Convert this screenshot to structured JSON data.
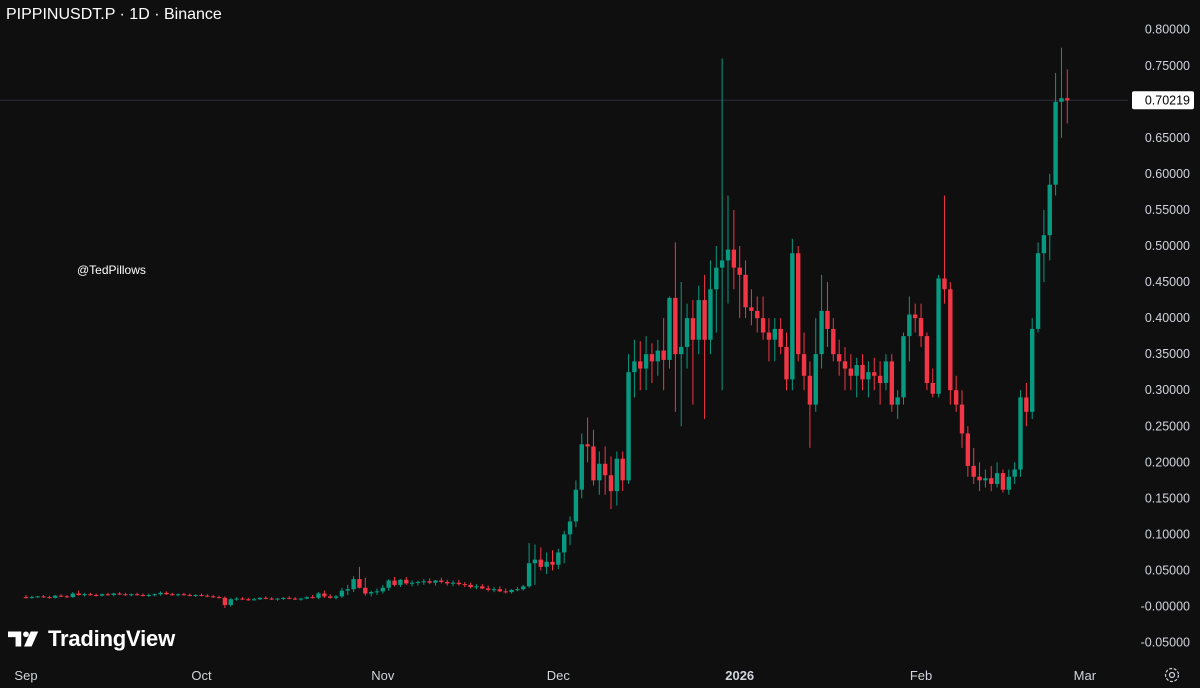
{
  "header": {
    "title": "PIPPINUSDT.P · 1D · Binance"
  },
  "watermark": {
    "handle": "@TedPillows",
    "brand": "TradingView"
  },
  "colors": {
    "background": "#0f0f0f",
    "up": "#089981",
    "down": "#f23645",
    "text": "#d1d4dc",
    "price_label_bg": "#ffffff",
    "price_label_text": "#000000",
    "price_line": "#2a2e39"
  },
  "icons": {
    "logo": "tradingview-logo-icon",
    "settings": "settings-gear-icon"
  },
  "chart_data": {
    "type": "candlestick",
    "symbol": "PIPPINUSDT.P",
    "interval": "1D",
    "exchange": "Binance",
    "ylim": [
      -0.07,
      0.81
    ],
    "y_ticks": [
      0.8,
      0.75,
      0.65,
      0.6,
      0.55,
      0.5,
      0.45,
      0.4,
      0.35,
      0.3,
      0.25,
      0.2,
      0.15,
      0.1,
      0.05,
      -0.0,
      -0.05
    ],
    "y_tick_labels": [
      "0.80000",
      "0.75000",
      "0.65000",
      "0.60000",
      "0.55000",
      "0.50000",
      "0.45000",
      "0.40000",
      "0.35000",
      "0.30000",
      "0.25000",
      "0.20000",
      "0.15000",
      "0.10000",
      "0.05000",
      "-0.00000",
      "-0.05000"
    ],
    "last_price": 0.70219,
    "last_price_label": "0.70219",
    "x_labels": [
      {
        "label": "Sep",
        "day": 0
      },
      {
        "label": "Oct",
        "day": 30
      },
      {
        "label": "Nov",
        "day": 61
      },
      {
        "label": "Dec",
        "day": 91
      },
      {
        "label": "2026",
        "day": 122
      },
      {
        "label": "Feb",
        "day": 153
      },
      {
        "label": "Mar",
        "day": 181
      }
    ],
    "ohlc": [
      [
        0.013,
        0.016,
        0.011,
        0.012
      ],
      [
        0.012,
        0.015,
        0.011,
        0.013
      ],
      [
        0.013,
        0.015,
        0.012,
        0.014
      ],
      [
        0.014,
        0.016,
        0.012,
        0.013
      ],
      [
        0.013,
        0.015,
        0.011,
        0.012
      ],
      [
        0.012,
        0.016,
        0.011,
        0.015
      ],
      [
        0.015,
        0.017,
        0.013,
        0.014
      ],
      [
        0.014,
        0.016,
        0.012,
        0.013
      ],
      [
        0.013,
        0.02,
        0.012,
        0.018
      ],
      [
        0.018,
        0.022,
        0.015,
        0.016
      ],
      [
        0.016,
        0.019,
        0.014,
        0.017
      ],
      [
        0.017,
        0.019,
        0.015,
        0.016
      ],
      [
        0.016,
        0.018,
        0.014,
        0.015
      ],
      [
        0.015,
        0.018,
        0.014,
        0.017
      ],
      [
        0.017,
        0.019,
        0.015,
        0.016
      ],
      [
        0.016,
        0.019,
        0.014,
        0.018
      ],
      [
        0.018,
        0.02,
        0.016,
        0.017
      ],
      [
        0.017,
        0.019,
        0.015,
        0.016
      ],
      [
        0.016,
        0.018,
        0.014,
        0.017
      ],
      [
        0.017,
        0.019,
        0.015,
        0.016
      ],
      [
        0.016,
        0.018,
        0.014,
        0.015
      ],
      [
        0.015,
        0.018,
        0.013,
        0.016
      ],
      [
        0.016,
        0.018,
        0.014,
        0.017
      ],
      [
        0.017,
        0.021,
        0.015,
        0.019
      ],
      [
        0.019,
        0.021,
        0.016,
        0.017
      ],
      [
        0.017,
        0.019,
        0.015,
        0.016
      ],
      [
        0.016,
        0.018,
        0.014,
        0.017
      ],
      [
        0.017,
        0.019,
        0.015,
        0.016
      ],
      [
        0.016,
        0.018,
        0.014,
        0.015
      ],
      [
        0.015,
        0.017,
        0.013,
        0.016
      ],
      [
        0.016,
        0.018,
        0.014,
        0.015
      ],
      [
        0.015,
        0.017,
        0.013,
        0.014
      ],
      [
        0.014,
        0.016,
        0.012,
        0.013
      ],
      [
        0.013,
        0.015,
        0.011,
        0.012
      ],
      [
        0.012,
        0.014,
        -0.002,
        0.002
      ],
      [
        0.002,
        0.012,
        0.0,
        0.01
      ],
      [
        0.01,
        0.013,
        0.008,
        0.011
      ],
      [
        0.011,
        0.013,
        0.009,
        0.01
      ],
      [
        0.01,
        0.012,
        0.008,
        0.009
      ],
      [
        0.009,
        0.012,
        0.008,
        0.01
      ],
      [
        0.01,
        0.013,
        0.009,
        0.012
      ],
      [
        0.012,
        0.014,
        0.01,
        0.011
      ],
      [
        0.011,
        0.013,
        0.009,
        0.01
      ],
      [
        0.01,
        0.012,
        0.008,
        0.011
      ],
      [
        0.011,
        0.013,
        0.009,
        0.012
      ],
      [
        0.012,
        0.014,
        0.01,
        0.011
      ],
      [
        0.011,
        0.013,
        0.009,
        0.01
      ],
      [
        0.01,
        0.012,
        0.008,
        0.011
      ],
      [
        0.011,
        0.014,
        0.01,
        0.013
      ],
      [
        0.013,
        0.016,
        0.011,
        0.012
      ],
      [
        0.012,
        0.02,
        0.01,
        0.018
      ],
      [
        0.018,
        0.022,
        0.012,
        0.014
      ],
      [
        0.014,
        0.017,
        0.011,
        0.012
      ],
      [
        0.012,
        0.016,
        0.01,
        0.014
      ],
      [
        0.014,
        0.026,
        0.012,
        0.022
      ],
      [
        0.022,
        0.03,
        0.016,
        0.024
      ],
      [
        0.024,
        0.042,
        0.02,
        0.038
      ],
      [
        0.038,
        0.055,
        0.025,
        0.026
      ],
      [
        0.026,
        0.04,
        0.015,
        0.018
      ],
      [
        0.018,
        0.022,
        0.014,
        0.02
      ],
      [
        0.02,
        0.025,
        0.016,
        0.021
      ],
      [
        0.021,
        0.03,
        0.018,
        0.026
      ],
      [
        0.026,
        0.038,
        0.022,
        0.036
      ],
      [
        0.036,
        0.041,
        0.028,
        0.03
      ],
      [
        0.03,
        0.038,
        0.027,
        0.037
      ],
      [
        0.037,
        0.041,
        0.03,
        0.032
      ],
      [
        0.032,
        0.036,
        0.028,
        0.033
      ],
      [
        0.033,
        0.036,
        0.029,
        0.034
      ],
      [
        0.034,
        0.038,
        0.03,
        0.035
      ],
      [
        0.035,
        0.039,
        0.031,
        0.033
      ],
      [
        0.033,
        0.037,
        0.029,
        0.036
      ],
      [
        0.036,
        0.04,
        0.032,
        0.034
      ],
      [
        0.034,
        0.037,
        0.029,
        0.032
      ],
      [
        0.032,
        0.036,
        0.028,
        0.033
      ],
      [
        0.033,
        0.037,
        0.029,
        0.031
      ],
      [
        0.031,
        0.034,
        0.027,
        0.03
      ],
      [
        0.03,
        0.033,
        0.025,
        0.027
      ],
      [
        0.027,
        0.031,
        0.024,
        0.028
      ],
      [
        0.028,
        0.031,
        0.024,
        0.025
      ],
      [
        0.025,
        0.029,
        0.021,
        0.023
      ],
      [
        0.023,
        0.027,
        0.02,
        0.024
      ],
      [
        0.024,
        0.028,
        0.02,
        0.021
      ],
      [
        0.021,
        0.025,
        0.018,
        0.02
      ],
      [
        0.02,
        0.024,
        0.018,
        0.023
      ],
      [
        0.023,
        0.027,
        0.021,
        0.024
      ],
      [
        0.024,
        0.03,
        0.022,
        0.028
      ],
      [
        0.028,
        0.088,
        0.026,
        0.06
      ],
      [
        0.06,
        0.086,
        0.03,
        0.065
      ],
      [
        0.065,
        0.082,
        0.05,
        0.055
      ],
      [
        0.055,
        0.075,
        0.045,
        0.062
      ],
      [
        0.062,
        0.078,
        0.05,
        0.058
      ],
      [
        0.058,
        0.08,
        0.052,
        0.075
      ],
      [
        0.075,
        0.105,
        0.06,
        0.1
      ],
      [
        0.1,
        0.125,
        0.085,
        0.118
      ],
      [
        0.118,
        0.175,
        0.11,
        0.162
      ],
      [
        0.162,
        0.24,
        0.15,
        0.225
      ],
      [
        0.225,
        0.262,
        0.2,
        0.222
      ],
      [
        0.222,
        0.245,
        0.168,
        0.175
      ],
      [
        0.175,
        0.215,
        0.155,
        0.198
      ],
      [
        0.198,
        0.222,
        0.155,
        0.182
      ],
      [
        0.182,
        0.208,
        0.135,
        0.16
      ],
      [
        0.16,
        0.215,
        0.14,
        0.205
      ],
      [
        0.205,
        0.215,
        0.16,
        0.175
      ],
      [
        0.175,
        0.35,
        0.17,
        0.325
      ],
      [
        0.325,
        0.37,
        0.29,
        0.34
      ],
      [
        0.34,
        0.368,
        0.3,
        0.33
      ],
      [
        0.33,
        0.375,
        0.3,
        0.35
      ],
      [
        0.35,
        0.365,
        0.31,
        0.34
      ],
      [
        0.34,
        0.37,
        0.32,
        0.355
      ],
      [
        0.355,
        0.4,
        0.3,
        0.342
      ],
      [
        0.342,
        0.43,
        0.33,
        0.428
      ],
      [
        0.428,
        0.505,
        0.27,
        0.35
      ],
      [
        0.35,
        0.45,
        0.25,
        0.36
      ],
      [
        0.36,
        0.42,
        0.33,
        0.4
      ],
      [
        0.4,
        0.425,
        0.28,
        0.37
      ],
      [
        0.37,
        0.445,
        0.35,
        0.425
      ],
      [
        0.425,
        0.46,
        0.26,
        0.37
      ],
      [
        0.37,
        0.48,
        0.35,
        0.44
      ],
      [
        0.44,
        0.5,
        0.38,
        0.47
      ],
      [
        0.47,
        0.76,
        0.3,
        0.48
      ],
      [
        0.48,
        0.57,
        0.42,
        0.495
      ],
      [
        0.495,
        0.55,
        0.44,
        0.47
      ],
      [
        0.47,
        0.5,
        0.4,
        0.46
      ],
      [
        0.46,
        0.48,
        0.4,
        0.415
      ],
      [
        0.415,
        0.44,
        0.39,
        0.41
      ],
      [
        0.41,
        0.43,
        0.38,
        0.4
      ],
      [
        0.4,
        0.43,
        0.37,
        0.38
      ],
      [
        0.38,
        0.4,
        0.34,
        0.37
      ],
      [
        0.37,
        0.4,
        0.34,
        0.385
      ],
      [
        0.385,
        0.4,
        0.35,
        0.36
      ],
      [
        0.36,
        0.38,
        0.3,
        0.315
      ],
      [
        0.315,
        0.51,
        0.3,
        0.49
      ],
      [
        0.49,
        0.5,
        0.34,
        0.35
      ],
      [
        0.35,
        0.38,
        0.3,
        0.32
      ],
      [
        0.32,
        0.34,
        0.22,
        0.28
      ],
      [
        0.28,
        0.4,
        0.27,
        0.35
      ],
      [
        0.35,
        0.46,
        0.33,
        0.41
      ],
      [
        0.41,
        0.45,
        0.36,
        0.385
      ],
      [
        0.385,
        0.4,
        0.34,
        0.35
      ],
      [
        0.35,
        0.37,
        0.32,
        0.34
      ],
      [
        0.34,
        0.36,
        0.3,
        0.33
      ],
      [
        0.33,
        0.35,
        0.3,
        0.32
      ],
      [
        0.32,
        0.345,
        0.29,
        0.335
      ],
      [
        0.335,
        0.35,
        0.3,
        0.315
      ],
      [
        0.315,
        0.34,
        0.29,
        0.325
      ],
      [
        0.325,
        0.345,
        0.3,
        0.32
      ],
      [
        0.32,
        0.34,
        0.28,
        0.31
      ],
      [
        0.31,
        0.35,
        0.3,
        0.34
      ],
      [
        0.34,
        0.35,
        0.27,
        0.28
      ],
      [
        0.28,
        0.3,
        0.26,
        0.29
      ],
      [
        0.29,
        0.38,
        0.28,
        0.375
      ],
      [
        0.375,
        0.43,
        0.34,
        0.405
      ],
      [
        0.405,
        0.42,
        0.38,
        0.4
      ],
      [
        0.4,
        0.42,
        0.36,
        0.375
      ],
      [
        0.375,
        0.38,
        0.3,
        0.31
      ],
      [
        0.31,
        0.33,
        0.29,
        0.295
      ],
      [
        0.295,
        0.46,
        0.29,
        0.455
      ],
      [
        0.455,
        0.57,
        0.42,
        0.44
      ],
      [
        0.44,
        0.45,
        0.28,
        0.3
      ],
      [
        0.3,
        0.32,
        0.27,
        0.28
      ],
      [
        0.28,
        0.3,
        0.22,
        0.24
      ],
      [
        0.24,
        0.25,
        0.18,
        0.195
      ],
      [
        0.195,
        0.22,
        0.17,
        0.18
      ],
      [
        0.18,
        0.2,
        0.16,
        0.175
      ],
      [
        0.175,
        0.19,
        0.165,
        0.178
      ],
      [
        0.178,
        0.195,
        0.16,
        0.17
      ],
      [
        0.17,
        0.2,
        0.165,
        0.185
      ],
      [
        0.185,
        0.19,
        0.158,
        0.162
      ],
      [
        0.162,
        0.19,
        0.155,
        0.18
      ],
      [
        0.18,
        0.2,
        0.17,
        0.19
      ],
      [
        0.19,
        0.3,
        0.18,
        0.29
      ],
      [
        0.29,
        0.31,
        0.25,
        0.27
      ],
      [
        0.27,
        0.4,
        0.26,
        0.385
      ],
      [
        0.385,
        0.505,
        0.38,
        0.49
      ],
      [
        0.49,
        0.55,
        0.45,
        0.515
      ],
      [
        0.515,
        0.6,
        0.48,
        0.585
      ],
      [
        0.585,
        0.74,
        0.57,
        0.7
      ],
      [
        0.7,
        0.775,
        0.65,
        0.705
      ],
      [
        0.705,
        0.745,
        0.67,
        0.702
      ]
    ]
  }
}
